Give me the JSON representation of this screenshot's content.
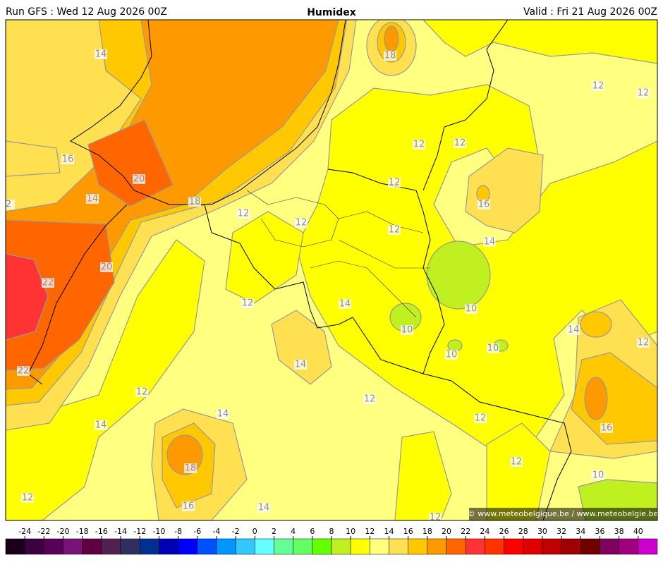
{
  "header": {
    "run": "Run GFS : Wed 12 Aug 2026 00Z",
    "title": "Humidex",
    "valid": "Valid : Fri 21 Aug 2026 00Z"
  },
  "contour_labels": [
    14,
    18,
    12,
    12,
    12,
    12,
    16,
    20,
    12,
    14,
    2,
    18,
    16,
    12,
    12,
    12,
    14,
    20,
    22,
    12,
    14,
    10,
    10,
    14,
    10,
    12,
    10,
    14,
    22,
    12,
    12,
    14,
    12,
    14,
    16,
    18,
    12,
    10,
    12,
    16,
    14,
    12
  ],
  "colorbar": {
    "ticks": [
      -24,
      -22,
      -20,
      -18,
      -16,
      -14,
      -12,
      -10,
      -8,
      -6,
      -4,
      -2,
      0,
      2,
      4,
      6,
      8,
      10,
      12,
      14,
      16,
      18,
      20,
      22,
      24,
      26,
      28,
      30,
      32,
      34,
      36,
      38,
      40
    ],
    "colors": [
      "#1a001a",
      "#3c0040",
      "#5a005a",
      "#781478",
      "#600040",
      "#502050",
      "#303060",
      "#003090",
      "#0000b4",
      "#0000ff",
      "#0050ff",
      "#0096ff",
      "#32c8ff",
      "#64ffff",
      "#64ff96",
      "#64ff64",
      "#64ff00",
      "#c0f020",
      "#ffff00",
      "#ffff80",
      "#ffe050",
      "#ffc800",
      "#ff9900",
      "#ff6600",
      "#ff3333",
      "#ff3300",
      "#ff0000",
      "#e00000",
      "#c00000",
      "#a00000",
      "#6e0000",
      "#800060",
      "#a00080",
      "#cc00cc"
    ]
  },
  "copyright": "© www.meteobelgique.be / www.meteobelgie.be"
}
